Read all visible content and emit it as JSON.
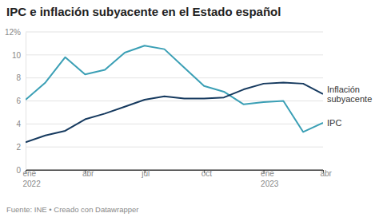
{
  "chart_data": {
    "type": "line",
    "title": "IPC e inflación subyacente en el Estado español",
    "source": "Fuente: INE • Creado con Datawrapper",
    "categories": [
      "ene 2022",
      null,
      null,
      "abr",
      null,
      null,
      "jul",
      null,
      null,
      "oct",
      null,
      null,
      "ene 2023",
      null,
      null,
      "abr"
    ],
    "series": [
      {
        "name": "IPC",
        "color": "#3a9fb5",
        "values": [
          6.1,
          7.6,
          9.8,
          8.3,
          8.7,
          10.2,
          10.8,
          10.5,
          8.9,
          7.3,
          6.8,
          5.7,
          5.9,
          6.0,
          3.3,
          4.1
        ]
      },
      {
        "name": "Inflación subyacente",
        "color": "#163a5f",
        "values": [
          2.4,
          3.0,
          3.4,
          4.4,
          4.9,
          5.5,
          6.1,
          6.4,
          6.2,
          6.2,
          6.3,
          7.0,
          7.5,
          7.6,
          7.5,
          6.6
        ]
      }
    ],
    "ylim": [
      0,
      12
    ],
    "yticks": [
      0,
      2,
      4,
      6,
      8,
      10,
      {
        "value": 12,
        "label": "12%"
      }
    ],
    "grid": true
  }
}
